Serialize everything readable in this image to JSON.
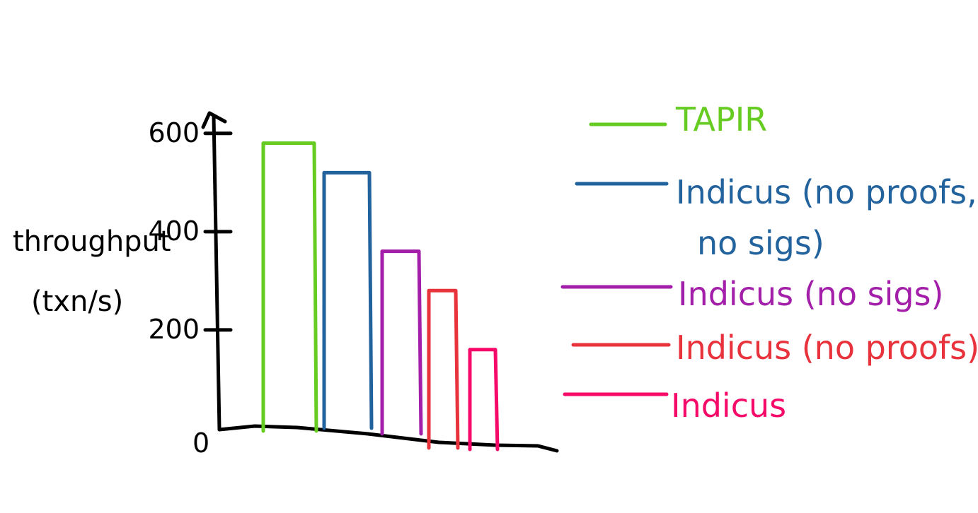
{
  "chart_data": {
    "type": "bar",
    "ylabel_line1": "throughput",
    "ylabel_line2": "(txn/s)",
    "origin_label": "0",
    "y_ticks": [
      {
        "value": 200,
        "label": "200"
      },
      {
        "value": 400,
        "label": "400"
      },
      {
        "value": 600,
        "label": "600"
      }
    ],
    "ylim": [
      0,
      650
    ],
    "grid": false,
    "legend_position": "right",
    "series": [
      {
        "name": "TAPIR",
        "value": 580,
        "color": "#66cc22"
      },
      {
        "name": "Indicus (no proofs, no sigs)",
        "name_lines": [
          "Indicus (no proofs,",
          "no sigs)"
        ],
        "value": 520,
        "color": "#22639e"
      },
      {
        "name": "Indicus (no sigs)",
        "value": 360,
        "color": "#a31faa"
      },
      {
        "name": "Indicus (no proofs)",
        "value": 280,
        "color": "#e8323c"
      },
      {
        "name": "Indicus",
        "value": 160,
        "color": "#f50a6a"
      }
    ]
  }
}
